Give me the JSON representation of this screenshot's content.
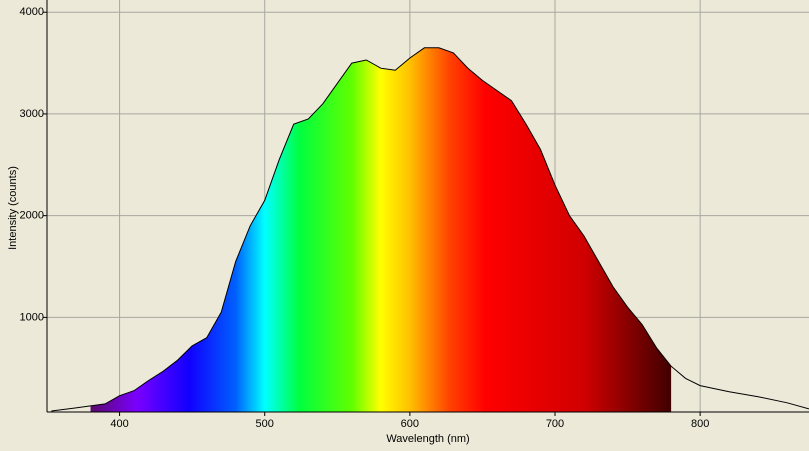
{
  "chart_data": {
    "type": "spectrum",
    "x_label": "Wavelength (nm)",
    "y_label": "Intensity (counts)",
    "x": [
      353,
      370,
      380,
      390,
      400,
      410,
      420,
      430,
      440,
      450,
      460,
      470,
      480,
      490,
      500,
      510,
      520,
      530,
      540,
      550,
      560,
      570,
      580,
      590,
      600,
      610,
      620,
      630,
      640,
      650,
      660,
      670,
      680,
      690,
      700,
      710,
      720,
      730,
      740,
      750,
      760,
      770,
      780,
      790,
      800,
      820,
      840,
      860,
      875
    ],
    "values": [
      80,
      110,
      130,
      150,
      230,
      280,
      380,
      470,
      580,
      720,
      800,
      1050,
      1550,
      1900,
      2150,
      2550,
      2900,
      2950,
      3100,
      3300,
      3500,
      3530,
      3450,
      3430,
      3550,
      3650,
      3650,
      3600,
      3450,
      3330,
      3230,
      3130,
      2900,
      2650,
      2300,
      2000,
      1800,
      1550,
      1300,
      1100,
      930,
      700,
      520,
      400,
      330,
      270,
      220,
      160,
      100
    ],
    "color": "#000000",
    "spectrum_fill": [
      380,
      780
    ],
    "xlim": [
      350,
      875
    ],
    "xticks": [
      400,
      500,
      600,
      700,
      800
    ],
    "ylim": [
      70,
      4120
    ],
    "yticks": [
      1000,
      2000,
      3000,
      4000
    ],
    "grid": true
  }
}
